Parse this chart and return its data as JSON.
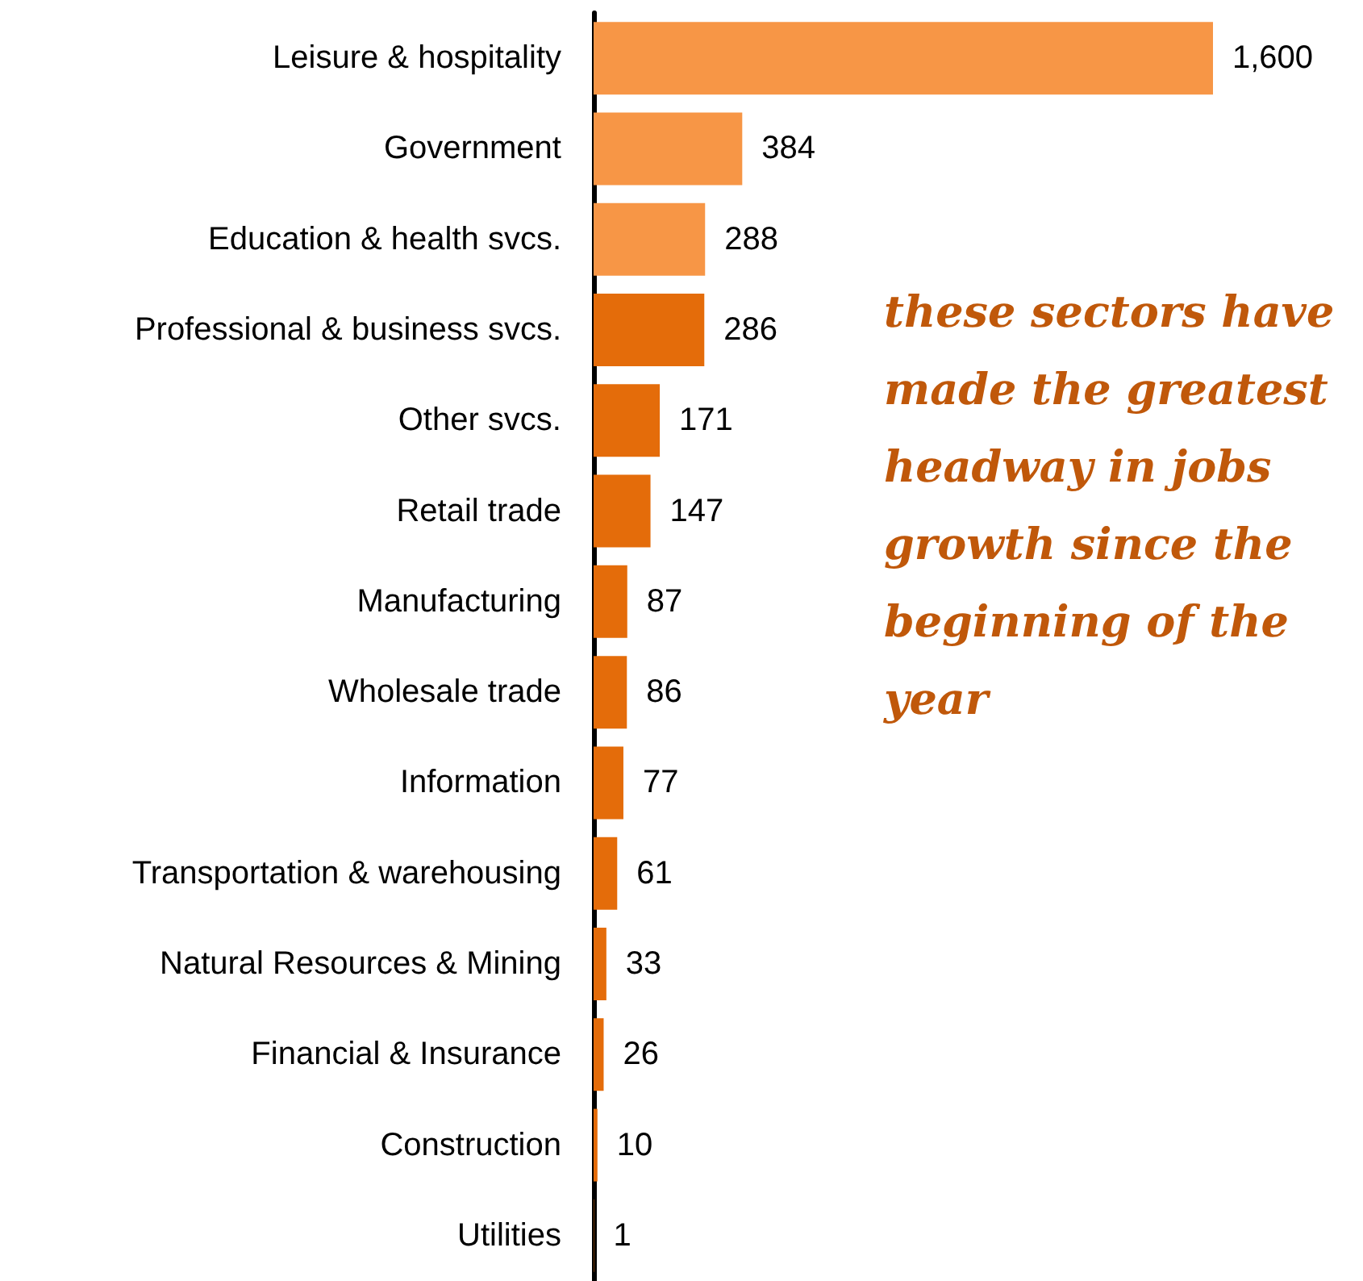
{
  "chart_data": {
    "type": "bar",
    "orientation": "horizontal",
    "categories": [
      "Leisure & hospitality",
      "Government",
      "Education & health svcs.",
      "Professional & business svcs.",
      "Other svcs.",
      "Retail trade",
      "Manufacturing",
      "Wholesale trade",
      "Information",
      "Transportation & warehousing",
      "Natural Resources & Mining",
      "Financial & Insurance",
      "Construction",
      "Utilities"
    ],
    "values": [
      1600,
      384,
      288,
      286,
      171,
      147,
      87,
      86,
      77,
      61,
      33,
      26,
      10,
      1
    ],
    "value_labels": [
      "1,600",
      "384",
      "288",
      "286",
      "171",
      "147",
      "87",
      "86",
      "77",
      "61",
      "33",
      "26",
      "10",
      "1"
    ],
    "colors": [
      "#f79646",
      "#f79646",
      "#f79646",
      "#e46c0a",
      "#e46c0a",
      "#e46c0a",
      "#e46c0a",
      "#e46c0a",
      "#e46c0a",
      "#e46c0a",
      "#e46c0a",
      "#e46c0a",
      "#e46c0a",
      "#e46c0a"
    ],
    "annotations": [
      "these sectors have made the greatest headway in jobs growth since the beginning of the year"
    ]
  }
}
